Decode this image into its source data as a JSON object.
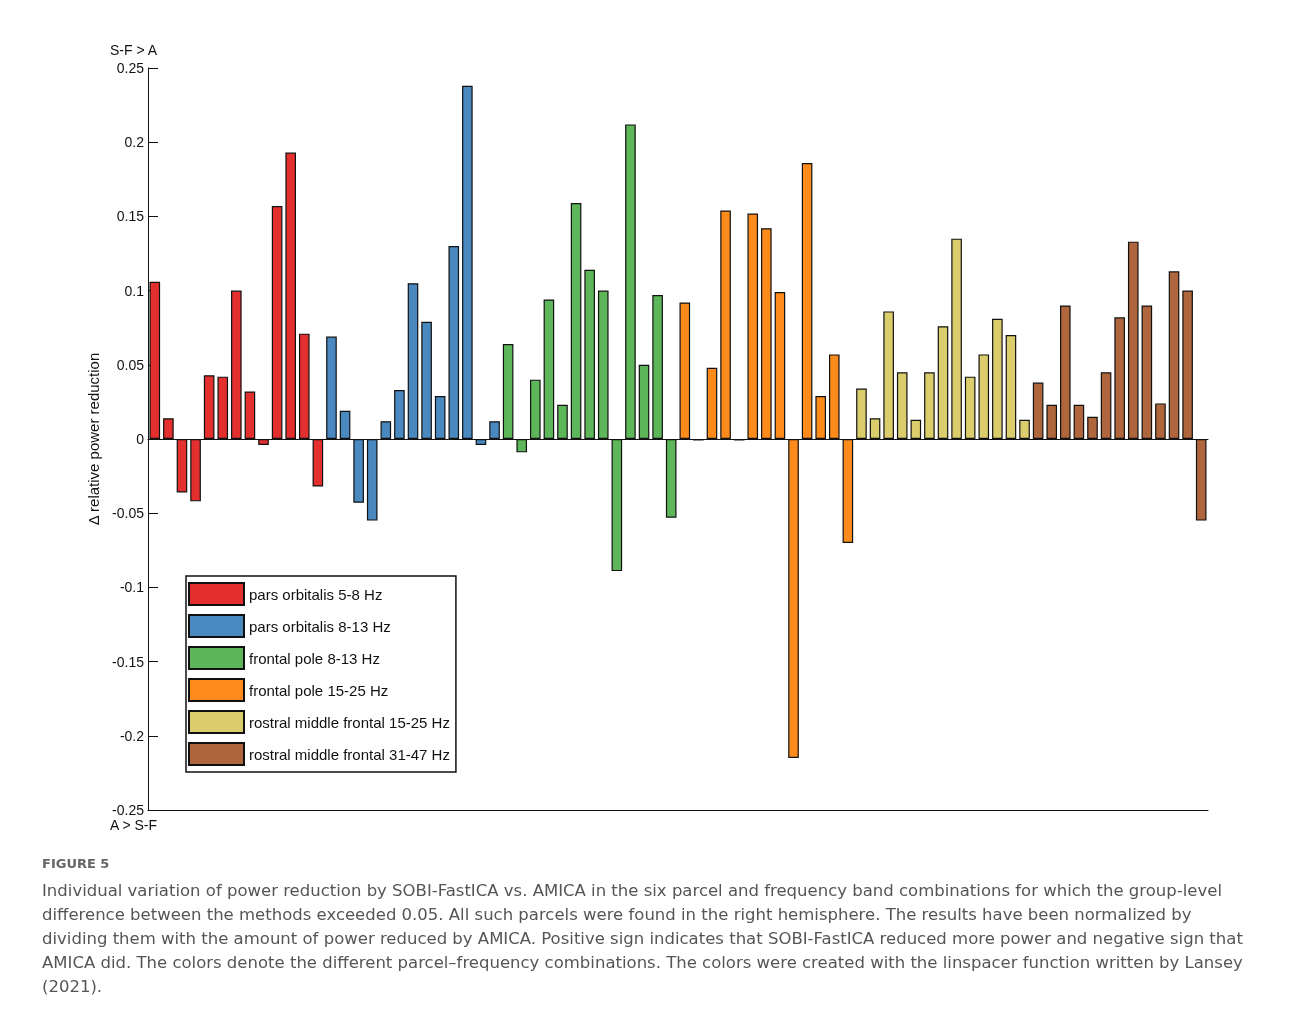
{
  "chart_data": {
    "type": "bar",
    "ylabel": "Δ relative power reduction",
    "categories": [
      null,
      null,
      null,
      null,
      null,
      null,
      null,
      null,
      null,
      null,
      null,
      null,
      null,
      null,
      null,
      null,
      null,
      null,
      null,
      null,
      null,
      null,
      null,
      null,
      null,
      null,
      null,
      null,
      null,
      null,
      null,
      null,
      null,
      null,
      null,
      null,
      null,
      null,
      null,
      null,
      null,
      null,
      null,
      null,
      null,
      null,
      null,
      null,
      null,
      null,
      null,
      null,
      null,
      null,
      null,
      null,
      null,
      null,
      null,
      null,
      null,
      null,
      null,
      null,
      null,
      null,
      null,
      null,
      null,
      null,
      null,
      null,
      null,
      null,
      null,
      null,
      null,
      null
    ],
    "series": [
      {
        "name": "pars orbitalis 5-8 Hz",
        "color": "#e3302f",
        "values": [
          0.106,
          0.014,
          -0.036,
          -0.042,
          0.043,
          0.042,
          0.1,
          0.032,
          -0.004,
          0.157,
          0.193,
          0.071,
          -0.032,
          null,
          null,
          null,
          null,
          null,
          null,
          null,
          null,
          null,
          null,
          null,
          null,
          null,
          null,
          null,
          null,
          null,
          null,
          null,
          null,
          null,
          null,
          null,
          null,
          null,
          null,
          null,
          null,
          null,
          null,
          null,
          null,
          null,
          null,
          null,
          null,
          null,
          null,
          null,
          null,
          null,
          null,
          null,
          null,
          null,
          null,
          null,
          null,
          null,
          null,
          null,
          null,
          null,
          null,
          null,
          null,
          null,
          null,
          null,
          null,
          null,
          null,
          null,
          null,
          null
        ]
      },
      {
        "name": "pars orbitalis 8-13 Hz",
        "color": "#4a88c0",
        "values": [
          null,
          null,
          null,
          null,
          null,
          null,
          null,
          null,
          null,
          null,
          null,
          null,
          null,
          0.069,
          0.019,
          -0.043,
          -0.055,
          0.012,
          0.033,
          0.105,
          0.079,
          0.029,
          0.13,
          0.238,
          -0.004,
          0.012,
          null,
          null,
          null,
          null,
          null,
          null,
          null,
          null,
          null,
          null,
          null,
          null,
          null,
          null,
          null,
          null,
          null,
          null,
          null,
          null,
          null,
          null,
          null,
          null,
          null,
          null,
          null,
          null,
          null,
          null,
          null,
          null,
          null,
          null,
          null,
          null,
          null,
          null,
          null,
          null,
          null,
          null,
          null,
          null,
          null,
          null,
          null,
          null,
          null,
          null,
          null,
          null
        ]
      },
      {
        "name": "frontal pole 8-13 Hz",
        "color": "#5db75a",
        "values": [
          null,
          null,
          null,
          null,
          null,
          null,
          null,
          null,
          null,
          null,
          null,
          null,
          null,
          null,
          null,
          null,
          null,
          null,
          null,
          null,
          null,
          null,
          null,
          null,
          null,
          null,
          0.064,
          -0.009,
          0.04,
          0.094,
          0.023,
          0.159,
          0.114,
          0.1,
          -0.089,
          0.212,
          0.05,
          0.097,
          -0.053,
          null,
          null,
          null,
          null,
          null,
          null,
          null,
          null,
          null,
          null,
          null,
          null,
          null,
          null,
          null,
          null,
          null,
          null,
          null,
          null,
          null,
          null,
          null,
          null,
          null,
          null,
          null,
          null,
          null,
          null,
          null,
          null,
          null,
          null,
          null,
          null,
          null,
          null,
          null
        ]
      },
      {
        "name": "frontal pole 15-25 Hz",
        "color": "#fd8b1c",
        "values": [
          null,
          null,
          null,
          null,
          null,
          null,
          null,
          null,
          null,
          null,
          null,
          null,
          null,
          null,
          null,
          null,
          null,
          null,
          null,
          null,
          null,
          null,
          null,
          null,
          null,
          null,
          null,
          null,
          null,
          null,
          null,
          null,
          null,
          null,
          null,
          null,
          null,
          null,
          null,
          0.092,
          -0.001,
          0.048,
          0.154,
          -0.001,
          0.152,
          0.142,
          0.099,
          -0.215,
          0.186,
          0.029,
          0.057,
          -0.07,
          null,
          null,
          null,
          null,
          null,
          null,
          null,
          null,
          null,
          null,
          null,
          null,
          null,
          null,
          null,
          null,
          null,
          null,
          null,
          null,
          null,
          null,
          null,
          null,
          null,
          null
        ]
      },
      {
        "name": "rostral middle frontal 15-25 Hz",
        "color": "#dccd6c",
        "values": [
          null,
          null,
          null,
          null,
          null,
          null,
          null,
          null,
          null,
          null,
          null,
          null,
          null,
          null,
          null,
          null,
          null,
          null,
          null,
          null,
          null,
          null,
          null,
          null,
          null,
          null,
          null,
          null,
          null,
          null,
          null,
          null,
          null,
          null,
          null,
          null,
          null,
          null,
          null,
          null,
          null,
          null,
          null,
          null,
          null,
          null,
          null,
          null,
          null,
          null,
          null,
          null,
          0.034,
          0.014,
          0.086,
          0.045,
          0.013,
          0.045,
          0.076,
          0.135,
          0.042,
          0.057,
          0.081,
          0.07,
          0.013,
          null,
          null,
          null,
          null,
          null,
          null,
          null,
          null,
          null,
          null,
          null,
          null,
          null
        ]
      },
      {
        "name": "rostral middle frontal 31-47 Hz",
        "color": "#b0663c",
        "values": [
          null,
          null,
          null,
          null,
          null,
          null,
          null,
          null,
          null,
          null,
          null,
          null,
          null,
          null,
          null,
          null,
          null,
          null,
          null,
          null,
          null,
          null,
          null,
          null,
          null,
          null,
          null,
          null,
          null,
          null,
          null,
          null,
          null,
          null,
          null,
          null,
          null,
          null,
          null,
          null,
          null,
          null,
          null,
          null,
          null,
          null,
          null,
          null,
          null,
          null,
          null,
          null,
          null,
          null,
          null,
          null,
          null,
          null,
          null,
          null,
          null,
          null,
          null,
          null,
          null,
          0.038,
          0.023,
          0.09,
          0.023,
          0.015,
          0.045,
          0.082,
          0.133,
          0.09,
          0.024,
          0.113,
          0.1,
          -0.055
        ]
      }
    ],
    "ylim": [
      -0.25,
      0.25
    ],
    "yticks": [
      -0.25,
      -0.2,
      -0.15,
      -0.1,
      -0.05,
      0,
      0.05,
      0.1,
      0.15,
      0.2,
      0.25
    ],
    "legend": "bottom left",
    "annotations": [
      "S-F > A",
      "A > S-F",
      "FIGURE 5",
      "Individual variation of power reduction by SOBI-FastICA vs. AMICA in the six parcel and frequency band combinations for which the group-level difference between the methods exceeded 0.05. All such parcels were found in the right hemisphere. The results have been normalized by dividing them with the amount of power reduced by AMICA. Positive sign indicates that SOBI-FastICA reduced more power and negative sign that AMICA did. The colors denote the different parcel–frequency combinations. The colors were created with the linspacer function written by Lansey (2021)."
    ]
  }
}
